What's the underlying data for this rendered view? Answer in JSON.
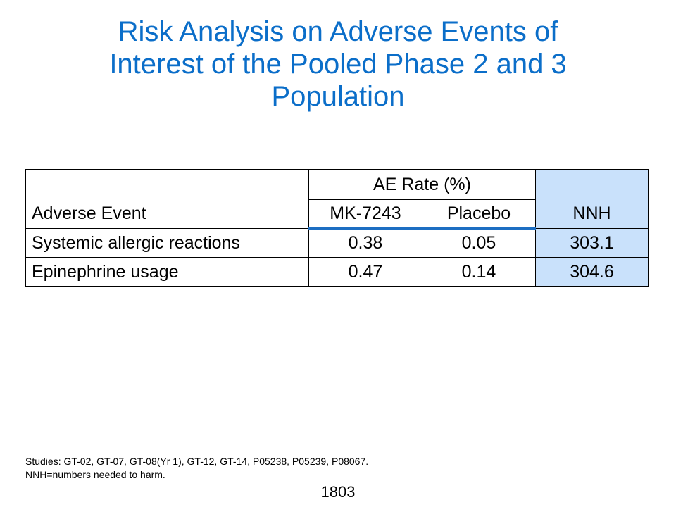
{
  "slide": {
    "title_lines": [
      "Risk Analysis on Adverse Events of",
      "Interest of the Pooled Phase 2 and 3",
      "Population"
    ],
    "title_color": "#0b6ec9"
  },
  "table": {
    "header": {
      "adverse_event": "Adverse Event",
      "ae_rate": "AE Rate (%)",
      "mk": "MK-7243",
      "placebo": "Placebo",
      "nnh": "NNH"
    },
    "rows": [
      {
        "event": "Systemic allergic reactions",
        "mk": "0.38",
        "placebo": "0.05",
        "nnh": "303.1"
      },
      {
        "event": "Epinephrine usage",
        "mk": "0.47",
        "placebo": "0.14",
        "nnh": "304.6"
      }
    ],
    "nnh_column_color": "#c9e1fb",
    "header_rule_color": "#1d6ec2"
  },
  "footnotes": [
    "Studies: GT-02, GT-07, GT-08(Yr 1), GT-12, GT-14, P05238, P05239, P08067.",
    "NNH=numbers needed to harm."
  ],
  "page_number": "1803"
}
